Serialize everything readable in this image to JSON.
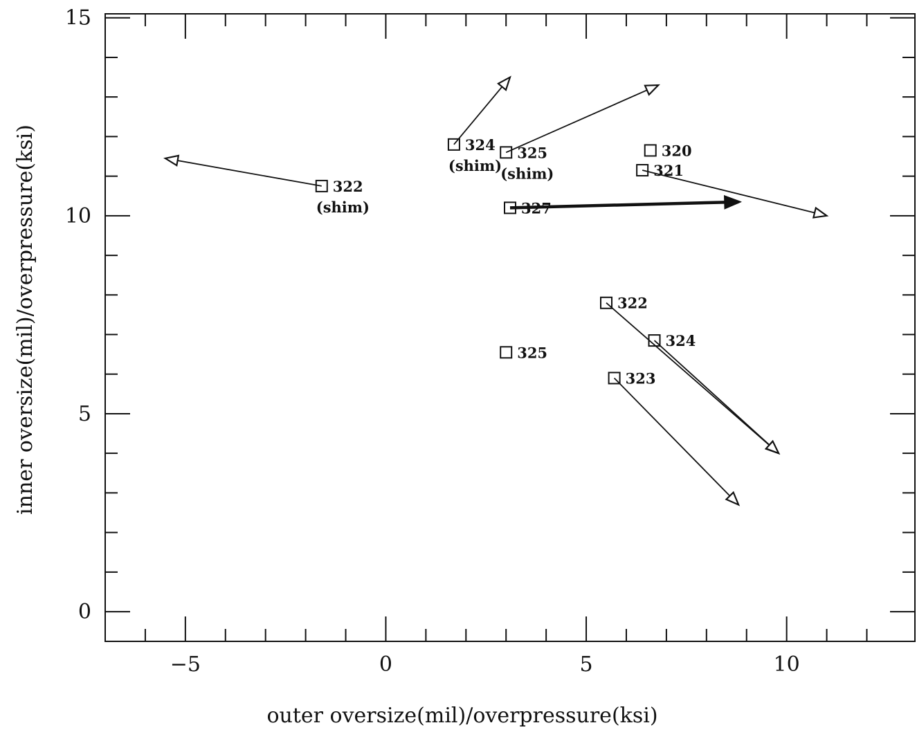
{
  "chart_data": {
    "type": "scatter",
    "title": "",
    "xlabel": "outer oversize(mil)/overpressure(ksi)",
    "ylabel": "inner oversize(mil)/overpressure(ksi)",
    "xlim": [
      -7,
      13.2
    ],
    "ylim": [
      -0.75,
      15.1
    ],
    "xticks": [
      -5,
      0,
      5,
      10
    ],
    "yticks": [
      0,
      5,
      10,
      15
    ],
    "x_tick_labels": [
      "−5",
      "0",
      "5",
      "10"
    ],
    "y_tick_labels": [
      "0",
      "5",
      "10",
      "15"
    ],
    "grid": false,
    "points": [
      {
        "id": "pt-322-shim",
        "x": -1.6,
        "y": 10.75,
        "label": "322",
        "sublabel": "(shim)"
      },
      {
        "id": "pt-324-shim",
        "x": 1.7,
        "y": 11.8,
        "label": "324",
        "sublabel": "(shim)"
      },
      {
        "id": "pt-325-shim",
        "x": 3.0,
        "y": 11.6,
        "label": "325",
        "sublabel": "(shim)"
      },
      {
        "id": "pt-320",
        "x": 6.6,
        "y": 11.65,
        "label": "320",
        "sublabel": ""
      },
      {
        "id": "pt-321",
        "x": 6.4,
        "y": 11.15,
        "label": "321",
        "sublabel": ""
      },
      {
        "id": "pt-327",
        "x": 3.1,
        "y": 10.2,
        "label": "327",
        "sublabel": ""
      },
      {
        "id": "pt-322",
        "x": 5.5,
        "y": 7.8,
        "label": "322",
        "sublabel": ""
      },
      {
        "id": "pt-324",
        "x": 6.7,
        "y": 6.85,
        "label": "324",
        "sublabel": ""
      },
      {
        "id": "pt-325",
        "x": 3.0,
        "y": 6.55,
        "label": "325",
        "sublabel": ""
      },
      {
        "id": "pt-323",
        "x": 5.7,
        "y": 5.9,
        "label": "323",
        "sublabel": ""
      }
    ],
    "arrows": [
      {
        "from": "pt-322-shim",
        "to_x": -5.5,
        "to_y": 11.45,
        "style": "open"
      },
      {
        "from": "pt-324-shim",
        "to_x": 3.1,
        "to_y": 13.5,
        "style": "open"
      },
      {
        "from": "pt-325-shim",
        "to_x": 6.8,
        "to_y": 13.3,
        "style": "open"
      },
      {
        "from": "pt-321",
        "to_x": 11.0,
        "to_y": 10.0,
        "style": "open"
      },
      {
        "from": "pt-327",
        "to_x": 8.8,
        "to_y": 10.35,
        "style": "bold"
      },
      {
        "from": "pt-322",
        "to_x": 9.8,
        "to_y": 4.0,
        "style": "open"
      },
      {
        "from": "pt-324",
        "to_x": 9.8,
        "to_y": 4.0,
        "style": "open"
      },
      {
        "from": "pt-323",
        "to_x": 8.8,
        "to_y": 2.7,
        "style": "open"
      }
    ]
  }
}
